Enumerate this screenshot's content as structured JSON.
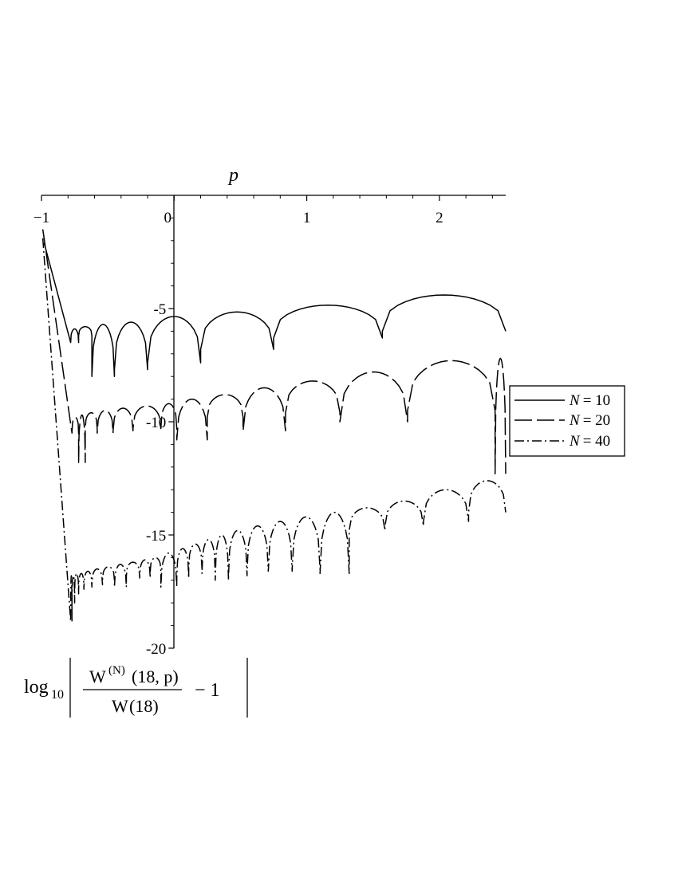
{
  "chart_data": {
    "type": "line",
    "xlabel": "p",
    "ylabel": {
      "log": "log",
      "log_sub": "10",
      "num_W": "W",
      "num_sup": "(N)",
      "num_args": "(18, p)",
      "den_W": "W",
      "den_args": "(18)",
      "tail": "− 1"
    },
    "xlim": [
      -1,
      2.5
    ],
    "ylim": [
      -20,
      0
    ],
    "x_ticks": [
      {
        "value": -1,
        "label": "−1"
      },
      {
        "value": 0,
        "label": "0"
      },
      {
        "value": 1,
        "label": "1"
      },
      {
        "value": 2,
        "label": "2"
      }
    ],
    "y_ticks": [
      {
        "value": -5,
        "label": "-5"
      },
      {
        "value": -10,
        "label": "-10"
      },
      {
        "value": -15,
        "label": "-15"
      },
      {
        "value": -20,
        "label": "-20"
      }
    ],
    "grid": false,
    "legend_position": "right",
    "series": [
      {
        "name": "N = 10",
        "legend_var": "N",
        "legend_val": "= 10",
        "dash": "solid",
        "start": [
          -0.98,
          -2.1
        ],
        "lobes": [
          {
            "x0": -0.78,
            "x1": -0.72,
            "peak": -5.9,
            "d0": -6.5
          },
          {
            "x0": -0.72,
            "x1": -0.62,
            "peak": -5.8,
            "d0": -6.2
          },
          {
            "x0": -0.62,
            "x1": -0.45,
            "peak": -5.7,
            "d0": -8.0
          },
          {
            "x0": -0.45,
            "x1": -0.2,
            "peak": -5.6,
            "d0": -7.7
          },
          {
            "x0": -0.2,
            "x1": 0.2,
            "peak": -5.35,
            "d0": -7.4
          },
          {
            "x0": 0.2,
            "x1": 0.75,
            "peak": -5.15,
            "d0": -6.8
          },
          {
            "x0": 0.75,
            "x1": 1.57,
            "peak": -4.85,
            "d0": -6.3
          },
          {
            "x0": 1.57,
            "x1": 2.5,
            "peak": -4.4,
            "d0": -6.0
          }
        ]
      },
      {
        "name": "N = 20",
        "legend_var": "N",
        "legend_val": "= 20",
        "dash": "long-dash",
        "start": [
          -0.99,
          -1.5
        ],
        "lobes": [
          {
            "x0": -0.77,
            "x1": -0.72,
            "peak": -9.8,
            "d0": -10.5
          },
          {
            "x0": -0.72,
            "x1": -0.67,
            "peak": -9.7,
            "d0": -11.8
          },
          {
            "x0": -0.67,
            "x1": -0.58,
            "peak": -9.6,
            "d0": -10.3
          },
          {
            "x0": -0.58,
            "x1": -0.46,
            "peak": -9.5,
            "d0": -10.5
          },
          {
            "x0": -0.46,
            "x1": -0.31,
            "peak": -9.4,
            "d0": -10.4
          },
          {
            "x0": -0.31,
            "x1": -0.1,
            "peak": -9.3,
            "d0": -10.3
          },
          {
            "x0": -0.1,
            "x1": 0.02,
            "peak": -9.2,
            "d0": -10.3
          },
          {
            "x0": 0.02,
            "x1": 0.25,
            "peak": -9.0,
            "d0": -10.8
          },
          {
            "x0": 0.25,
            "x1": 0.52,
            "peak": -8.8,
            "d0": -9.8
          },
          {
            "x0": 0.52,
            "x1": 0.84,
            "peak": -8.5,
            "d0": -10.4
          },
          {
            "x0": 0.84,
            "x1": 1.25,
            "peak": -8.2,
            "d0": -9.6
          },
          {
            "x0": 1.25,
            "x1": 1.76,
            "peak": -7.8,
            "d0": -10.0
          },
          {
            "x0": 1.76,
            "x1": 2.42,
            "peak": -7.3,
            "d0": -9.5
          },
          {
            "x0": 2.42,
            "x1": 2.5,
            "peak": -7.2,
            "d0": -12.3
          }
        ]
      },
      {
        "name": "N = 40",
        "legend_var": "N",
        "legend_val": "= 40",
        "dash": "dash-dot",
        "start": [
          -0.99,
          -1.9
        ],
        "lobes": [
          {
            "x0": -0.78,
            "x1": -0.77,
            "peak": -16.8,
            "d0": -18.8
          },
          {
            "x0": -0.77,
            "x1": -0.75,
            "peak": -16.8,
            "d0": -18.0
          },
          {
            "x0": -0.75,
            "x1": -0.72,
            "peak": -16.7,
            "d0": -17.6
          },
          {
            "x0": -0.72,
            "x1": -0.68,
            "peak": -16.7,
            "d0": -17.4
          },
          {
            "x0": -0.68,
            "x1": -0.62,
            "peak": -16.6,
            "d0": -17.3
          },
          {
            "x0": -0.62,
            "x1": -0.54,
            "peak": -16.5,
            "d0": -17.2
          },
          {
            "x0": -0.54,
            "x1": -0.45,
            "peak": -16.4,
            "d0": -17.0
          },
          {
            "x0": -0.45,
            "x1": -0.36,
            "peak": -16.3,
            "d0": -17.3
          },
          {
            "x0": -0.36,
            "x1": -0.26,
            "peak": -16.2,
            "d0": -16.8
          },
          {
            "x0": -0.26,
            "x1": -0.18,
            "peak": -16.1,
            "d0": -16.9
          },
          {
            "x0": -0.18,
            "x1": -0.1,
            "peak": -16.0,
            "d0": -16.6
          },
          {
            "x0": -0.1,
            "x1": 0.02,
            "peak": -15.8,
            "d0": -17.3
          },
          {
            "x0": 0.02,
            "x1": 0.11,
            "peak": -15.6,
            "d0": -16.9
          },
          {
            "x0": 0.11,
            "x1": 0.21,
            "peak": -15.4,
            "d0": -16.5
          },
          {
            "x0": 0.21,
            "x1": 0.31,
            "peak": -15.2,
            "d0": -16.7
          },
          {
            "x0": 0.31,
            "x1": 0.41,
            "peak": -15.0,
            "d0": -17.0
          },
          {
            "x0": 0.41,
            "x1": 0.55,
            "peak": -14.8,
            "d0": -16.8
          },
          {
            "x0": 0.55,
            "x1": 0.71,
            "peak": -14.6,
            "d0": -16.6
          },
          {
            "x0": 0.71,
            "x1": 0.89,
            "peak": -14.4,
            "d0": -16.6
          },
          {
            "x0": 0.89,
            "x1": 1.1,
            "peak": -14.2,
            "d0": -16.5
          },
          {
            "x0": 1.1,
            "x1": 1.32,
            "peak": -14.0,
            "d0": -16.7
          },
          {
            "x0": 1.32,
            "x1": 1.59,
            "peak": -13.8,
            "d0": -14.8
          },
          {
            "x0": 1.59,
            "x1": 1.88,
            "peak": -13.5,
            "d0": -14.6
          },
          {
            "x0": 1.88,
            "x1": 2.22,
            "peak": -13.0,
            "d0": -14.4
          },
          {
            "x0": 2.22,
            "x1": 2.5,
            "peak": -12.6,
            "d0": -14.0
          }
        ]
      }
    ]
  }
}
